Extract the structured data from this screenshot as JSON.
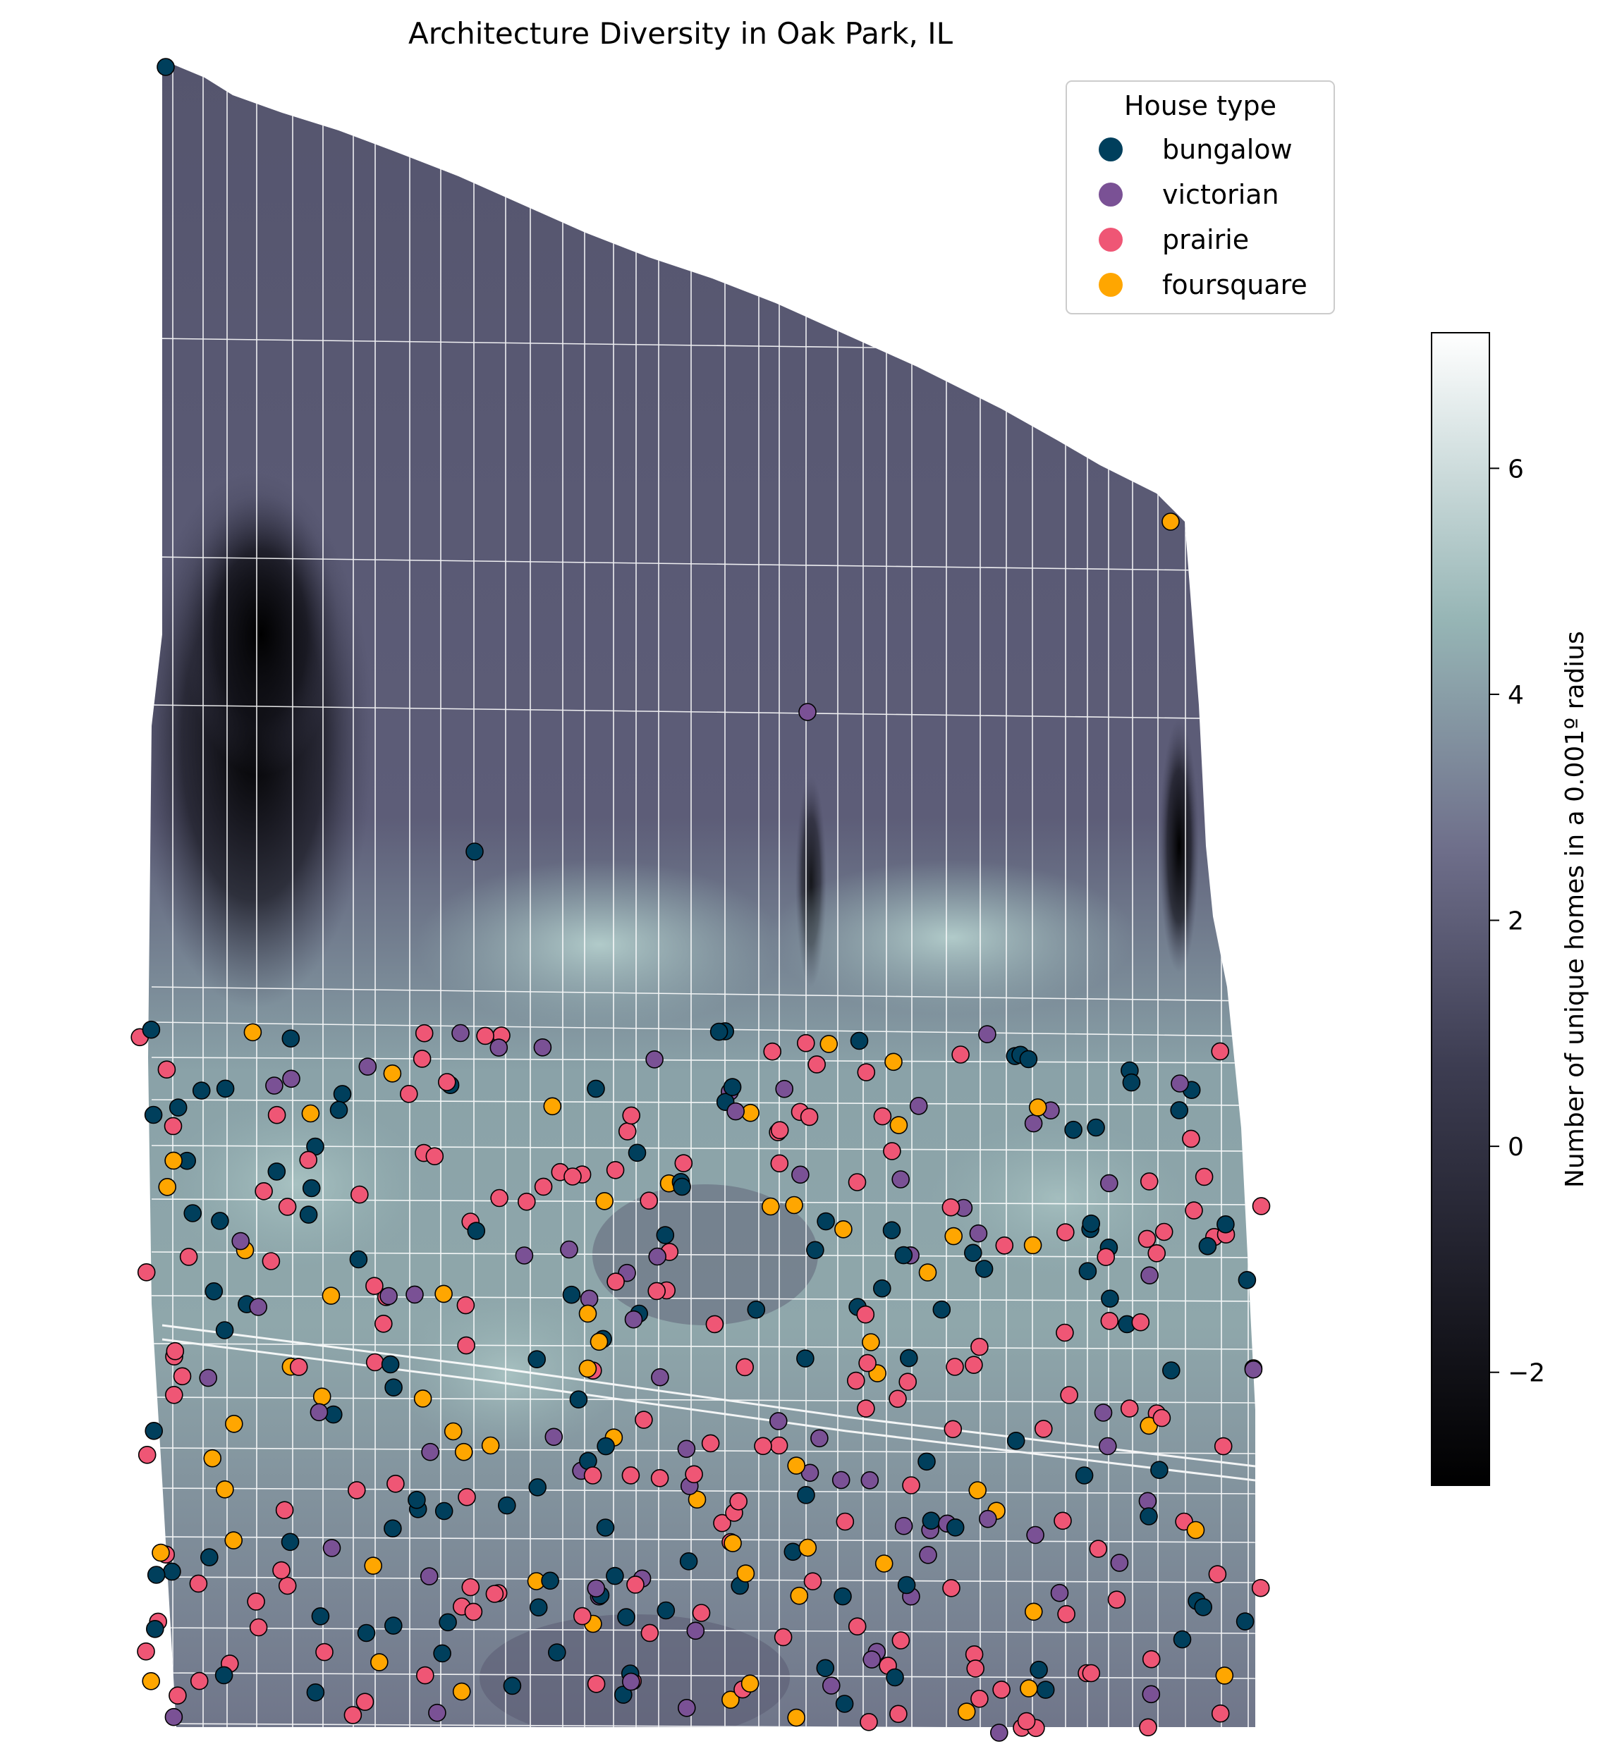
{
  "title": "Architecture Diversity in Oak Park, IL",
  "legend": {
    "title": "House type",
    "items": [
      {
        "label": "bungalow",
        "color": "#003f5c"
      },
      {
        "label": "victorian",
        "color": "#7a5195"
      },
      {
        "label": "prairie",
        "color": "#ef5675"
      },
      {
        "label": "foursquare",
        "color": "#ffa600"
      }
    ]
  },
  "colorbar": {
    "label": "Number of unique homes in a 0.001º radius",
    "min": -3,
    "max": 7.2,
    "ticks": [
      -2,
      0,
      2,
      4,
      6
    ],
    "tick_labels": [
      "−2",
      "0",
      "2",
      "4",
      "6"
    ],
    "colormap": "bone"
  },
  "chart_data": {
    "type": "scatter",
    "title": "Architecture Diversity in Oak Park, IL",
    "description_layers": [
      "density heatmap (bone colormap)",
      "street network",
      "house points by type"
    ],
    "series": [
      {
        "name": "bungalow",
        "color": "#003f5c"
      },
      {
        "name": "victorian",
        "color": "#7a5195"
      },
      {
        "name": "prairie",
        "color": "#ef5675"
      },
      {
        "name": "foursquare",
        "color": "#ffa600"
      }
    ],
    "colorbar_range": [
      -3,
      7.2
    ],
    "legend_position": "top-right"
  }
}
